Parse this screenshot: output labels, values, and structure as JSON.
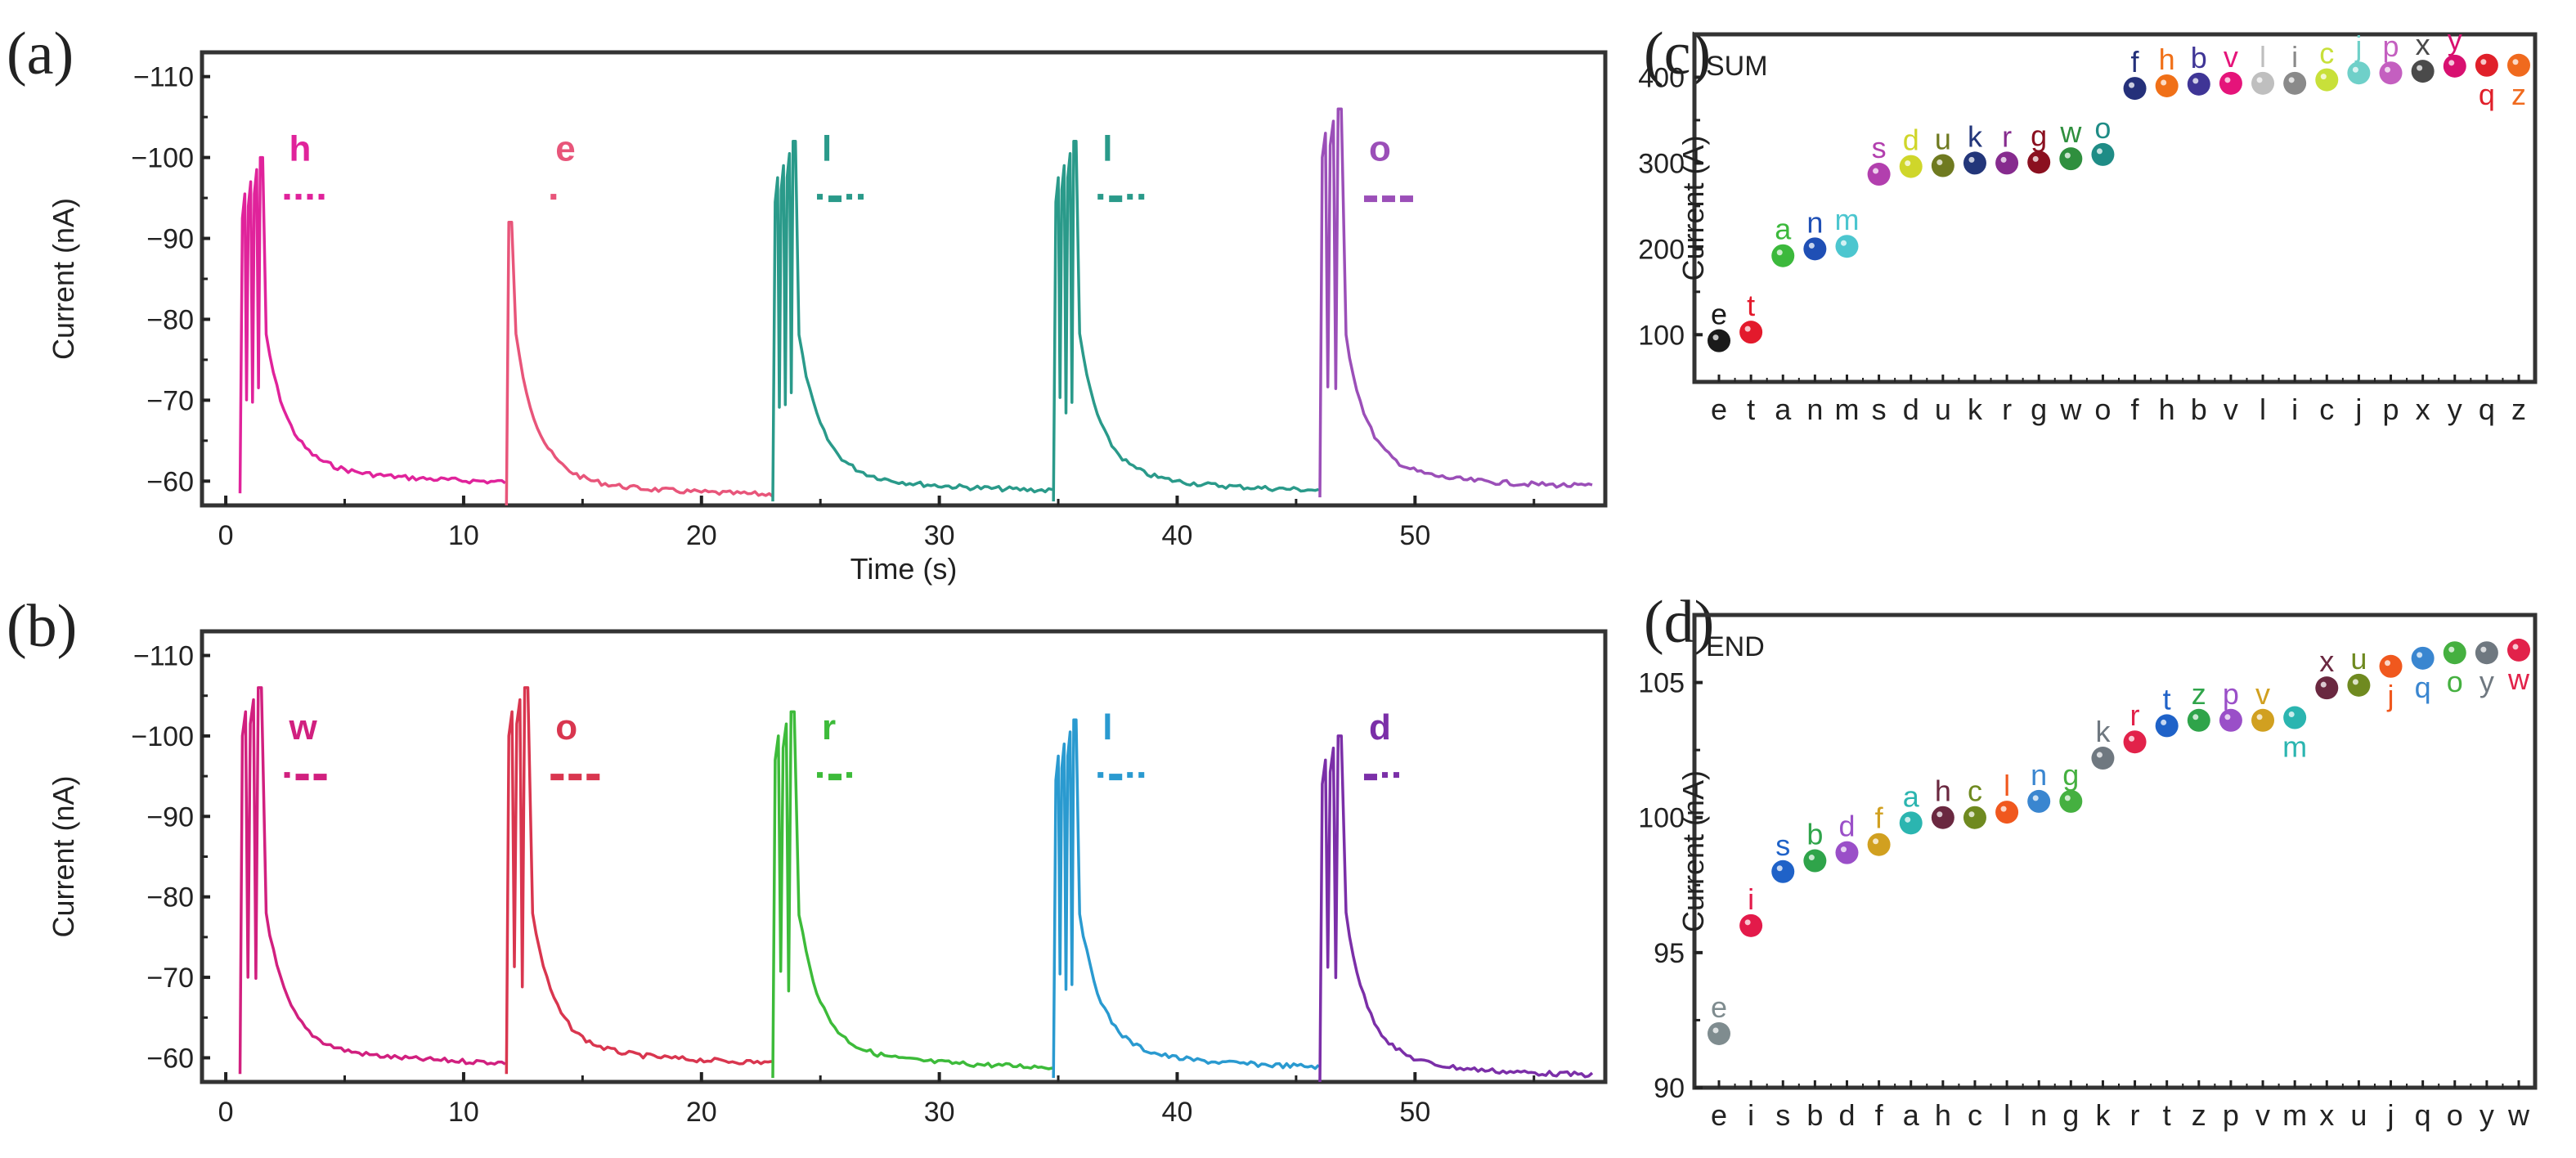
{
  "panel_labels": [
    "(a)",
    "(b)",
    "(c)",
    "(d)"
  ],
  "chart_data": [
    {
      "id": "a",
      "type": "line",
      "xlabel": "Time (s)",
      "ylabel": "Current (nA)",
      "xlim": [
        -1,
        58
      ],
      "ylim": [
        -57,
        -113
      ],
      "xticks": [
        0,
        10,
        20,
        30,
        40,
        50
      ],
      "yticks": [
        -60,
        -70,
        -80,
        -90,
        -100,
        -110
      ],
      "word": "hello",
      "events": [
        {
          "letter": "h",
          "morse": "....",
          "color": "#e0239b",
          "start": 0.6,
          "pulses": 4,
          "peak": -100,
          "baseline": -59.5
        },
        {
          "letter": "e",
          "morse": ".",
          "color": "#e8557a",
          "start": 11.8,
          "pulses": 1,
          "peak": -92,
          "baseline": -58
        },
        {
          "letter": "l",
          "morse": ".-..",
          "color": "#2a9a8a",
          "start": 23.0,
          "pulses": 4,
          "peak": -102,
          "baseline": -58.5
        },
        {
          "letter": "l",
          "morse": ".-..",
          "color": "#2a9a8a",
          "start": 34.8,
          "pulses": 4,
          "peak": -102,
          "baseline": -58.5
        },
        {
          "letter": "o",
          "morse": "---",
          "color": "#9b4fb8",
          "start": 46.0,
          "pulses": 3,
          "peak": -106,
          "baseline": -59
        }
      ]
    },
    {
      "id": "b",
      "type": "line",
      "xlabel": "Time (s)",
      "ylabel": "Current (nA)",
      "xlim": [
        -1,
        58
      ],
      "ylim": [
        -57,
        -113
      ],
      "xticks": [
        0,
        10,
        20,
        30,
        40,
        50
      ],
      "yticks": [
        -60,
        -70,
        -80,
        -90,
        -100,
        -110
      ],
      "word": "world",
      "events": [
        {
          "letter": "w",
          "morse": ".--",
          "color": "#d1207f",
          "start": 0.6,
          "pulses": 3,
          "peak": -106,
          "baseline": -59
        },
        {
          "letter": "o",
          "morse": "---",
          "color": "#d9364f",
          "start": 11.8,
          "pulses": 3,
          "peak": -106,
          "baseline": -59
        },
        {
          "letter": "r",
          "morse": ".-.",
          "color": "#3dbb3a",
          "start": 23.0,
          "pulses": 3,
          "peak": -103,
          "baseline": -58.5
        },
        {
          "letter": "l",
          "morse": ".-..",
          "color": "#2a9ad0",
          "start": 34.8,
          "pulses": 4,
          "peak": -102,
          "baseline": -58.5
        },
        {
          "letter": "d",
          "morse": "-..",
          "color": "#7b2fa8",
          "start": 46.0,
          "pulses": 3,
          "peak": -100,
          "baseline": -57.5
        }
      ]
    },
    {
      "id": "c",
      "type": "scatter",
      "inset_label": "SUM",
      "ylabel": "Current (A)",
      "ylim": [
        45,
        450
      ],
      "yticks": [
        100,
        200,
        300,
        400
      ],
      "categories": [
        "e",
        "t",
        "a",
        "n",
        "m",
        "s",
        "d",
        "u",
        "k",
        "r",
        "g",
        "w",
        "o",
        "f",
        "h",
        "b",
        "v",
        "l",
        "i",
        "c",
        "j",
        "p",
        "x",
        "y",
        "q",
        "z"
      ],
      "values": [
        93,
        103,
        192,
        200,
        203,
        287,
        296,
        297,
        300,
        300,
        301,
        305,
        310,
        387,
        390,
        392,
        393,
        393,
        393,
        397,
        405,
        405,
        407,
        413,
        414,
        414
      ],
      "colors": [
        "#1a1a1a",
        "#e31a2c",
        "#3cb93c",
        "#1f4fb5",
        "#4cc6cf",
        "#b23fae",
        "#cfd62a",
        "#6f7a20",
        "#23367a",
        "#862b8e",
        "#8b1020",
        "#2f8f3e",
        "#1f8c86",
        "#24307a",
        "#f07018",
        "#3f3596",
        "#e5147a",
        "#bfbfbf",
        "#8a8a8a",
        "#c8e03a",
        "#6fd0c9",
        "#c45fc0",
        "#4a4a4a",
        "#d81070",
        "#e0202a",
        "#f06a1e"
      ],
      "label_pos": [
        "above",
        "above",
        "above",
        "above",
        "above",
        "above",
        "above",
        "above",
        "above",
        "above",
        "above",
        "above",
        "above",
        "above",
        "above",
        "above",
        "above",
        "above",
        "above",
        "above",
        "above",
        "above",
        "above",
        "above",
        "below",
        "below"
      ]
    },
    {
      "id": "d",
      "type": "scatter",
      "inset_label": "END",
      "ylabel": "Current (nA)",
      "ylim": [
        90,
        107.5
      ],
      "yticks": [
        90,
        95,
        100,
        105
      ],
      "categories": [
        "e",
        "i",
        "s",
        "b",
        "d",
        "f",
        "a",
        "h",
        "c",
        "l",
        "n",
        "g",
        "k",
        "r",
        "t",
        "z",
        "p",
        "v",
        "m",
        "x",
        "u",
        "j",
        "q",
        "o",
        "y",
        "w"
      ],
      "values": [
        92.0,
        96.0,
        98.0,
        98.4,
        98.7,
        99.0,
        99.8,
        100.0,
        100.0,
        100.2,
        100.6,
        100.6,
        102.2,
        102.8,
        103.4,
        103.6,
        103.6,
        103.6,
        103.7,
        104.8,
        104.9,
        105.6,
        105.9,
        106.1,
        106.1,
        106.2
      ],
      "colors": [
        "#7f8c8f",
        "#e31a4a",
        "#1f62c8",
        "#2fa44a",
        "#9a4fc8",
        "#d1a020",
        "#2bb5b0",
        "#6a2840",
        "#6f8a20",
        "#f0581e",
        "#3a86d0",
        "#45b040",
        "#6f7880",
        "#e2224a",
        "#1f62c8",
        "#2fa44a",
        "#9a4fc8",
        "#d1a020",
        "#2bb5b0",
        "#6a2840",
        "#6f8a20",
        "#f0581e",
        "#3a86d0",
        "#45b040",
        "#6f7880",
        "#e2224a"
      ],
      "label_pos": [
        "above",
        "above",
        "above",
        "above",
        "above",
        "above",
        "above",
        "above",
        "above",
        "above",
        "above",
        "above",
        "above",
        "above",
        "above",
        "above",
        "above",
        "above",
        "below",
        "above",
        "above",
        "below",
        "below",
        "below",
        "below",
        "below"
      ]
    }
  ]
}
